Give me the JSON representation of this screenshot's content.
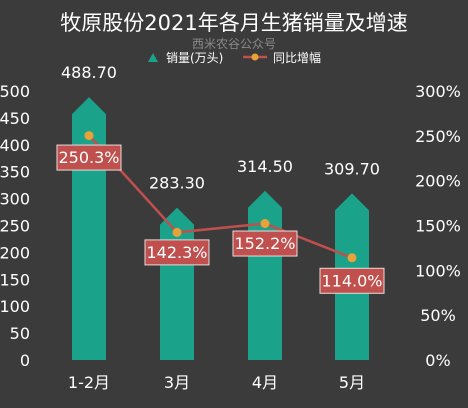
{
  "chart_data": {
    "type": "bar",
    "title": "牧原股份2021年各月生猪销量及增速",
    "subtitle": "西米农谷公众号",
    "categories": [
      "1-2月",
      "3月",
      "4月",
      "5月"
    ],
    "series": [
      {
        "name": "销量(万头)",
        "type": "bar",
        "axis": "left",
        "values": [
          488.7,
          283.3,
          314.5,
          309.7
        ],
        "labels": [
          "488.70",
          "283.30",
          "314.50",
          "309.70"
        ],
        "color": "#1aa38a"
      },
      {
        "name": "同比增幅",
        "type": "line",
        "axis": "right",
        "values": [
          250.3,
          142.3,
          152.2,
          114.0
        ],
        "labels": [
          "250.3%",
          "142.3%",
          "152.2%",
          "114.0%"
        ],
        "color": "#c0504d",
        "marker_color": "#e8a23a"
      }
    ],
    "y_left": {
      "min": 0,
      "max": 500,
      "ticks": [
        "0",
        "50",
        "100",
        "150",
        "200",
        "250",
        "300",
        "350",
        "400",
        "450",
        "500"
      ]
    },
    "y_right": {
      "min": 0,
      "max": 300,
      "ticks": [
        "0%",
        "50%",
        "100%",
        "150%",
        "200%",
        "250%",
        "300%"
      ]
    },
    "legend_position": "top-center",
    "background": "#3b3b3b"
  }
}
